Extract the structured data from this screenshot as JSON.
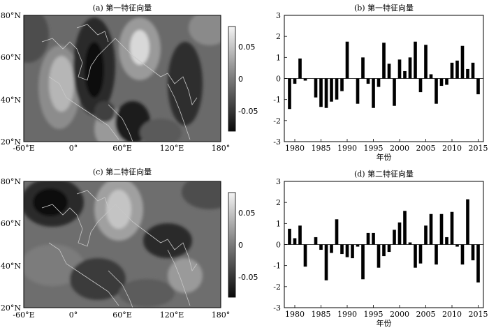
{
  "colors": {
    "background": "#ffffff",
    "bar": "#000000",
    "coast": "#c8c8c8",
    "frame": "#000000"
  },
  "maps": [
    {
      "title": "(a) 第一特征向量",
      "lat_labels": [
        "80°N",
        "60°N",
        "40°N",
        "20°N"
      ],
      "lon_labels": [
        "-60°E",
        "0°",
        "60°E",
        "120°E",
        "180°"
      ],
      "colorbar_ticks": [
        "0.05",
        "0",
        "-0.05"
      ]
    },
    {
      "title": "(c) 第二特征向量",
      "lat_labels": [
        "80°N",
        "60°N",
        "40°N",
        "20°N"
      ],
      "lon_labels": [
        "-60°E",
        "0°",
        "60°E",
        "120°E",
        "180°"
      ],
      "colorbar_ticks": [
        "0.05",
        "0",
        "-0.05"
      ]
    }
  ],
  "chart_data": [
    {
      "type": "bar",
      "title": "(b) 第一特征向量",
      "xlabel": "年份",
      "ylabel": "",
      "xlim": [
        1978,
        2016
      ],
      "ylim": [
        -3,
        3
      ],
      "xticks": [
        1980,
        1985,
        1990,
        1995,
        2000,
        2005,
        2010,
        2015
      ],
      "yticks": [
        3,
        2,
        1,
        0,
        -1,
        -2,
        -3
      ],
      "x": [
        1979,
        1980,
        1981,
        1982,
        1983,
        1984,
        1985,
        1986,
        1987,
        1988,
        1989,
        1990,
        1991,
        1992,
        1993,
        1994,
        1995,
        1996,
        1997,
        1998,
        1999,
        2000,
        2001,
        2002,
        2003,
        2004,
        2005,
        2006,
        2007,
        2008,
        2009,
        2010,
        2011,
        2012,
        2013,
        2014,
        2015
      ],
      "values": [
        -1.45,
        -0.25,
        0.95,
        -0.1,
        0,
        -0.9,
        -1.35,
        -1.4,
        -1.1,
        -1.0,
        -0.6,
        1.75,
        0,
        -1.2,
        1.0,
        -0.25,
        -1.4,
        -0.4,
        1.7,
        0.7,
        -1.3,
        0.9,
        0.35,
        1.0,
        1.75,
        -0.65,
        1.6,
        0.2,
        -1.2,
        -0.35,
        -0.3,
        0.75,
        0.85,
        1.55,
        0.45,
        0.75,
        -0.75
      ]
    },
    {
      "type": "bar",
      "title": "(d) 第二特征向量",
      "xlabel": "年份",
      "ylabel": "",
      "xlim": [
        1978,
        2016
      ],
      "ylim": [
        -3,
        3
      ],
      "xticks": [
        1980,
        1985,
        1990,
        1995,
        2000,
        2005,
        2010,
        2015
      ],
      "yticks": [
        3,
        2,
        1,
        0,
        -1,
        -2,
        -3
      ],
      "x": [
        1979,
        1980,
        1981,
        1982,
        1983,
        1984,
        1985,
        1986,
        1987,
        1988,
        1989,
        1990,
        1991,
        1992,
        1993,
        1994,
        1995,
        1996,
        1997,
        1998,
        1999,
        2000,
        2001,
        2002,
        2003,
        2004,
        2005,
        2006,
        2007,
        2008,
        2009,
        2010,
        2011,
        2012,
        2013,
        2014,
        2015
      ],
      "values": [
        0.75,
        0.3,
        0.9,
        -1.05,
        0,
        0.35,
        -0.25,
        -1.7,
        -0.4,
        1.2,
        -0.45,
        -0.6,
        -0.65,
        -0.1,
        -1.65,
        0.55,
        0.55,
        -1.1,
        -0.55,
        -0.35,
        0.7,
        1.05,
        1.6,
        0.1,
        -1.1,
        -0.9,
        0.9,
        1.45,
        -0.95,
        1.45,
        0.35,
        1.55,
        -0.1,
        -0.95,
        2.15,
        -0.75,
        -1.8
      ]
    }
  ]
}
